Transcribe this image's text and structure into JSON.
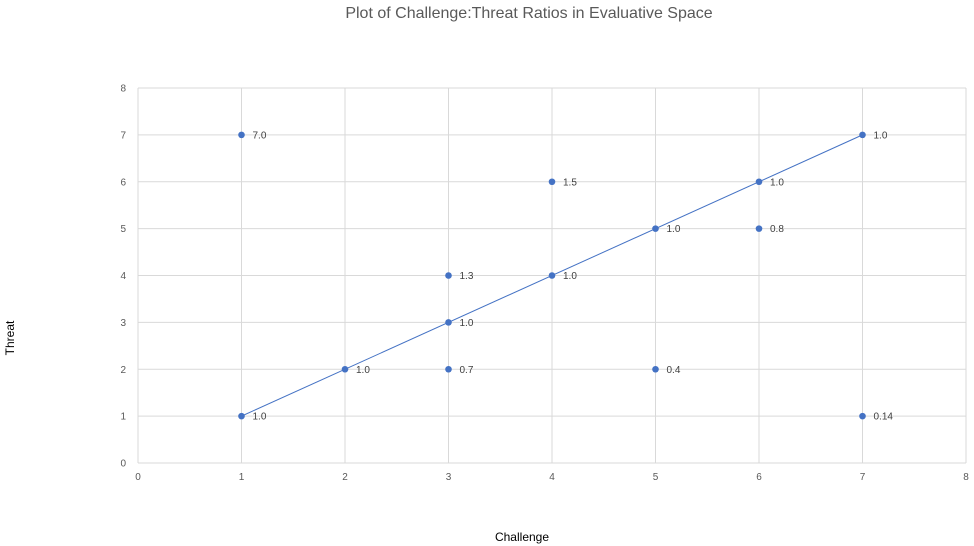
{
  "chart_data": {
    "type": "scatter",
    "title": "Plot of Challenge:Threat Ratios in Evaluative Space",
    "xlabel": "Challenge",
    "ylabel": "Threat",
    "xlim": [
      0,
      8
    ],
    "ylim": [
      0,
      8
    ],
    "x_ticks": [
      "0",
      "1",
      "2",
      "3",
      "4",
      "5",
      "6",
      "7",
      "8"
    ],
    "y_ticks": [
      "0",
      "1",
      "2",
      "3",
      "4",
      "5",
      "6",
      "7",
      "8"
    ],
    "grid": "vertical and horizontal",
    "legend": "none",
    "marker_color": "#4472c4",
    "line_color": "#4472c4",
    "series": [
      {
        "points": [
          {
            "x": 1,
            "y": 7,
            "label": "7.0"
          },
          {
            "x": 1,
            "y": 1,
            "label": "1.0"
          },
          {
            "x": 2,
            "y": 2,
            "label": "1.0"
          },
          {
            "x": 3,
            "y": 4,
            "label": "1.3"
          },
          {
            "x": 3,
            "y": 3,
            "label": "1.0"
          },
          {
            "x": 3,
            "y": 2,
            "label": "0.7"
          },
          {
            "x": 4,
            "y": 6,
            "label": "1.5"
          },
          {
            "x": 4,
            "y": 4,
            "label": "1.0"
          },
          {
            "x": 5,
            "y": 5,
            "label": "1.0"
          },
          {
            "x": 5,
            "y": 2,
            "label": "0.4"
          },
          {
            "x": 6,
            "y": 6,
            "label": "1.0"
          },
          {
            "x": 6,
            "y": 5,
            "label": "0.8"
          },
          {
            "x": 7,
            "y": 7,
            "label": "1.0"
          },
          {
            "x": 7,
            "y": 1,
            "label": "0.14"
          }
        ]
      }
    ],
    "trend_line": {
      "x": [
        1,
        7
      ],
      "y": [
        1,
        7
      ]
    }
  }
}
